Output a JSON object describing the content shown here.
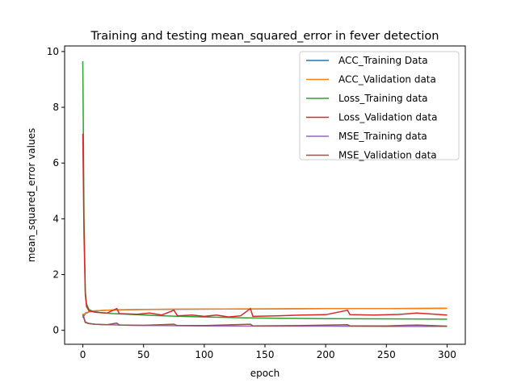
{
  "chart_data": {
    "type": "line",
    "title": "Training and testing mean_squared_error in fever detection",
    "xlabel": "epoch",
    "ylabel": "mean_squared_error values",
    "xlim": [
      -15,
      315
    ],
    "ylim": [
      -0.5,
      10.2
    ],
    "xticks": [
      0,
      50,
      100,
      150,
      200,
      250,
      300
    ],
    "yticks": [
      0,
      2,
      4,
      6,
      8,
      10
    ],
    "grid": false,
    "legend_position": "top-right",
    "series": [
      {
        "name": "ACC_Training Data",
        "color": "#1f77b4",
        "points": [
          [
            0,
            0.45
          ],
          [
            2,
            0.6
          ],
          [
            5,
            0.66
          ],
          [
            10,
            0.7
          ],
          [
            20,
            0.72
          ],
          [
            40,
            0.74
          ],
          [
            60,
            0.75
          ],
          [
            100,
            0.76
          ],
          [
            150,
            0.77
          ],
          [
            200,
            0.78
          ],
          [
            250,
            0.78
          ],
          [
            300,
            0.79
          ]
        ]
      },
      {
        "name": "ACC_Validation data",
        "color": "#ff7f0e",
        "points": [
          [
            0,
            0.5
          ],
          [
            2,
            0.62
          ],
          [
            5,
            0.67
          ],
          [
            10,
            0.7
          ],
          [
            20,
            0.72
          ],
          [
            30,
            0.74
          ],
          [
            50,
            0.75
          ],
          [
            80,
            0.76
          ],
          [
            100,
            0.76
          ],
          [
            130,
            0.77
          ],
          [
            150,
            0.77
          ],
          [
            200,
            0.78
          ],
          [
            250,
            0.78
          ],
          [
            300,
            0.79
          ]
        ]
      },
      {
        "name": "Loss_Training data",
        "color": "#2ca02c",
        "points": [
          [
            0,
            9.65
          ],
          [
            1,
            4.0
          ],
          [
            2,
            1.4
          ],
          [
            3,
            0.95
          ],
          [
            5,
            0.75
          ],
          [
            8,
            0.68
          ],
          [
            15,
            0.63
          ],
          [
            25,
            0.6
          ],
          [
            40,
            0.57
          ],
          [
            60,
            0.53
          ],
          [
            80,
            0.5
          ],
          [
            100,
            0.48
          ],
          [
            130,
            0.45
          ],
          [
            160,
            0.43
          ],
          [
            200,
            0.42
          ],
          [
            250,
            0.41
          ],
          [
            300,
            0.4
          ]
        ]
      },
      {
        "name": "Loss_Validation data",
        "color": "#d62728",
        "points": [
          [
            0,
            7.05
          ],
          [
            1,
            3.4
          ],
          [
            2,
            1.3
          ],
          [
            3,
            0.85
          ],
          [
            5,
            0.7
          ],
          [
            10,
            0.65
          ],
          [
            20,
            0.62
          ],
          [
            28,
            0.78
          ],
          [
            30,
            0.6
          ],
          [
            45,
            0.58
          ],
          [
            55,
            0.62
          ],
          [
            65,
            0.55
          ],
          [
            75,
            0.72
          ],
          [
            78,
            0.52
          ],
          [
            90,
            0.55
          ],
          [
            100,
            0.5
          ],
          [
            110,
            0.55
          ],
          [
            120,
            0.48
          ],
          [
            130,
            0.52
          ],
          [
            138,
            0.78
          ],
          [
            140,
            0.5
          ],
          [
            160,
            0.52
          ],
          [
            180,
            0.55
          ],
          [
            200,
            0.56
          ],
          [
            218,
            0.72
          ],
          [
            220,
            0.56
          ],
          [
            240,
            0.55
          ],
          [
            260,
            0.57
          ],
          [
            275,
            0.62
          ],
          [
            300,
            0.55
          ]
        ]
      },
      {
        "name": "MSE_Training data",
        "color": "#9467bd",
        "points": [
          [
            0,
            0.6
          ],
          [
            2,
            0.3
          ],
          [
            5,
            0.25
          ],
          [
            10,
            0.22
          ],
          [
            20,
            0.2
          ],
          [
            40,
            0.18
          ],
          [
            60,
            0.17
          ],
          [
            100,
            0.16
          ],
          [
            150,
            0.15
          ],
          [
            200,
            0.15
          ],
          [
            250,
            0.14
          ],
          [
            300,
            0.14
          ]
        ]
      },
      {
        "name": "MSE_Validation data",
        "color": "#8c564b",
        "points": [
          [
            0,
            0.55
          ],
          [
            2,
            0.28
          ],
          [
            5,
            0.24
          ],
          [
            10,
            0.22
          ],
          [
            20,
            0.2
          ],
          [
            28,
            0.26
          ],
          [
            30,
            0.19
          ],
          [
            50,
            0.18
          ],
          [
            75,
            0.22
          ],
          [
            78,
            0.17
          ],
          [
            100,
            0.17
          ],
          [
            138,
            0.22
          ],
          [
            140,
            0.16
          ],
          [
            180,
            0.17
          ],
          [
            218,
            0.2
          ],
          [
            220,
            0.16
          ],
          [
            250,
            0.16
          ],
          [
            275,
            0.19
          ],
          [
            300,
            0.15
          ]
        ]
      }
    ]
  }
}
